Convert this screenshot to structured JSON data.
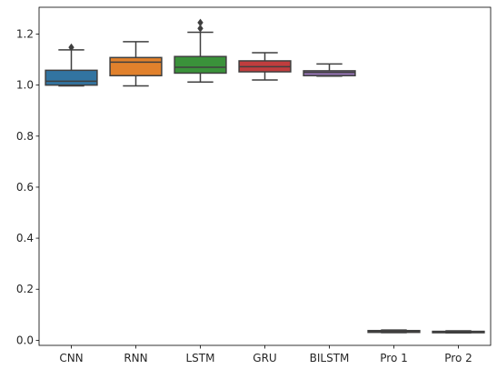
{
  "chart_data": {
    "type": "box",
    "categories": [
      "CNN",
      "RNN",
      "LSTM",
      "GRU",
      "BILSTM",
      "Pro 1",
      "Pro 2"
    ],
    "colors": [
      "#3274a1",
      "#e1812c",
      "#3a923a",
      "#c03d3e",
      "#9372b2",
      "#845b53",
      "#d684bd"
    ],
    "y_ticks": [
      "0.0",
      "0.2",
      "0.4",
      "0.6",
      "0.8",
      "1.0",
      "1.2"
    ],
    "y_tick_values": [
      0.0,
      0.2,
      0.4,
      0.6,
      0.8,
      1.0,
      1.2
    ],
    "ylim": [
      -0.02,
      1.305
    ],
    "grid": false,
    "legend": "none",
    "boxes": [
      {
        "name": "CNN",
        "whisker_low": 0.997,
        "q1": 1.0,
        "median": 1.015,
        "q3": 1.058,
        "whisker_high": 1.138,
        "outliers": [
          1.148
        ]
      },
      {
        "name": "RNN",
        "whisker_low": 0.997,
        "q1": 1.037,
        "median": 1.09,
        "q3": 1.108,
        "whisker_high": 1.17,
        "outliers": []
      },
      {
        "name": "LSTM",
        "whisker_low": 1.012,
        "q1": 1.047,
        "median": 1.07,
        "q3": 1.112,
        "whisker_high": 1.207,
        "outliers": [
          1.222,
          1.245
        ]
      },
      {
        "name": "GRU",
        "whisker_low": 1.02,
        "q1": 1.052,
        "median": 1.072,
        "q3": 1.095,
        "whisker_high": 1.127,
        "outliers": []
      },
      {
        "name": "BILSTM",
        "whisker_low": 1.035,
        "q1": 1.037,
        "median": 1.05,
        "q3": 1.056,
        "whisker_high": 1.083,
        "outliers": []
      },
      {
        "name": "Pro 1",
        "whisker_low": 0.03,
        "q1": 0.031,
        "median": 0.034,
        "q3": 0.038,
        "whisker_high": 0.04,
        "outliers": []
      },
      {
        "name": "Pro 2",
        "whisker_low": 0.029,
        "q1": 0.03,
        "median": 0.032,
        "q3": 0.035,
        "whisker_high": 0.037,
        "outliers": []
      }
    ]
  }
}
